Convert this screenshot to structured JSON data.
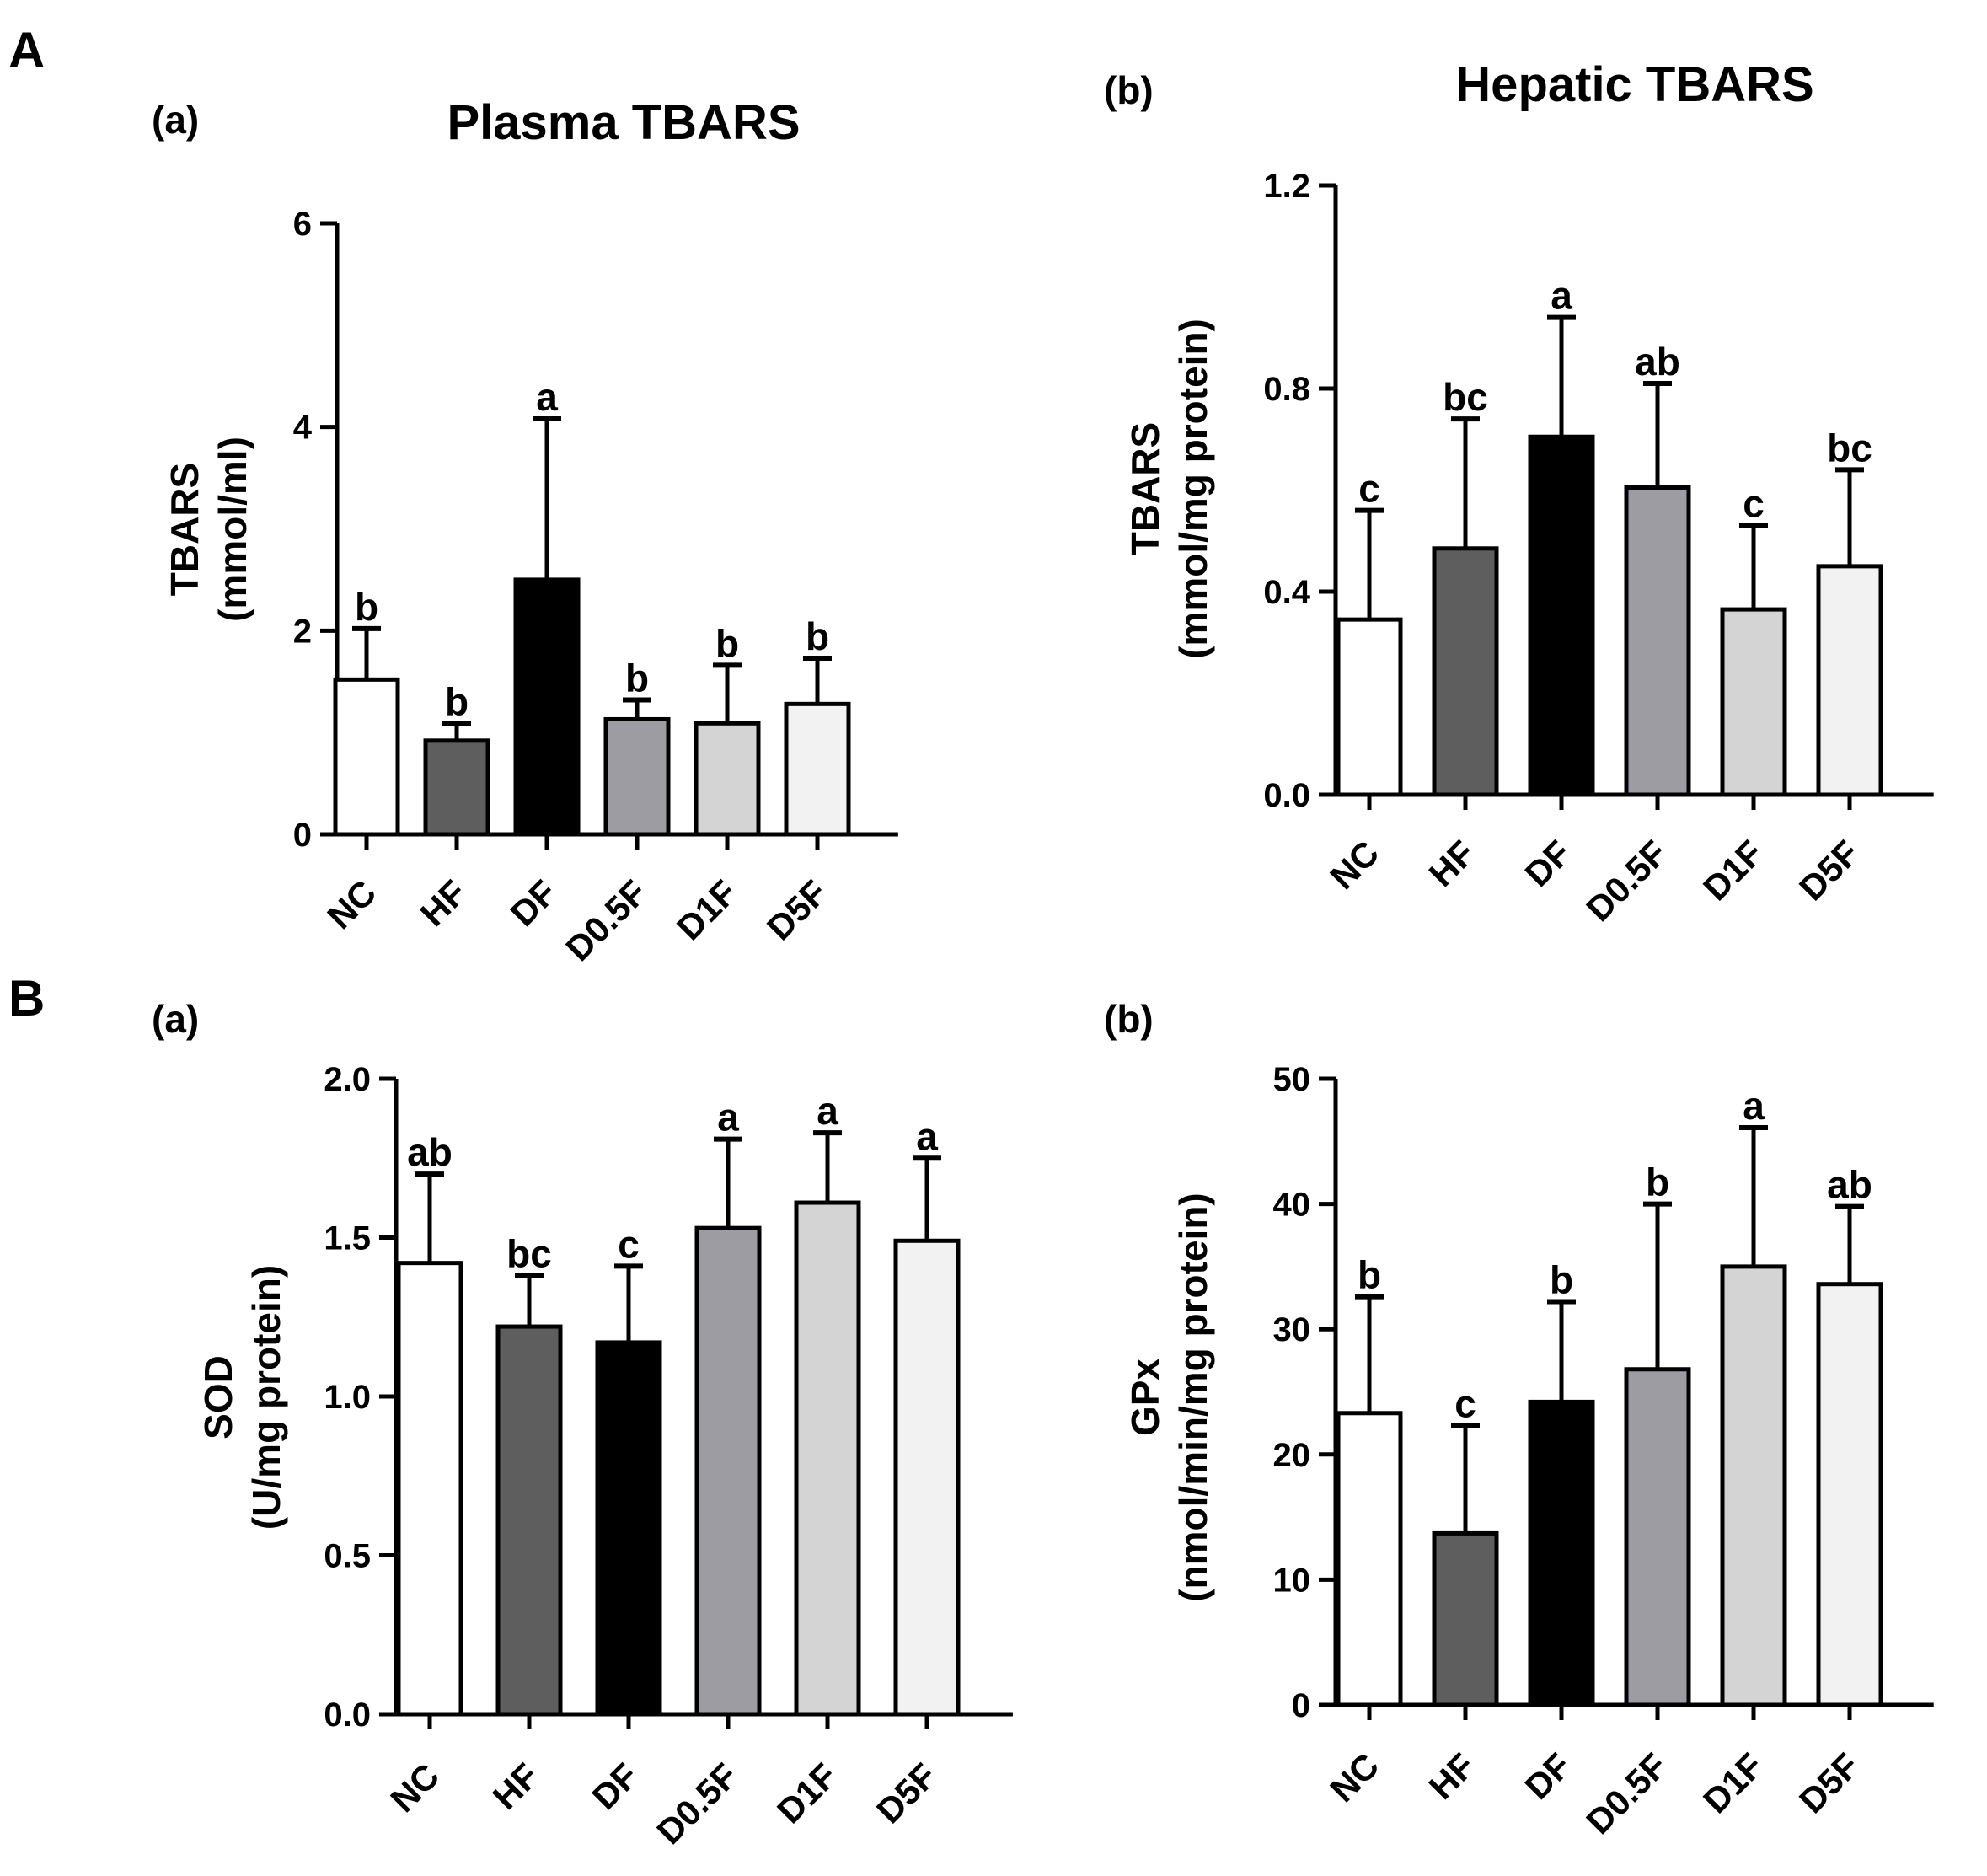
{
  "sections": [
    {
      "label": "A"
    },
    {
      "label": "B"
    }
  ],
  "chart_data": [
    {
      "id": "plasma-tbars",
      "type": "bar",
      "panel_label": "(a)",
      "title": "Plasma TBARS",
      "ylabel_line1": "TBARS",
      "ylabel_line2": "(mmol/ml)",
      "categories": [
        "NC",
        "HF",
        "DF",
        "D0.5F",
        "D1F",
        "D5F"
      ],
      "values": [
        1.52,
        0.92,
        2.5,
        1.13,
        1.09,
        1.28
      ],
      "errors": [
        0.5,
        0.17,
        1.58,
        0.19,
        0.57,
        0.45
      ],
      "letters": [
        "b",
        "b",
        "a",
        "b",
        "b",
        "b"
      ],
      "ylim": [
        0,
        6
      ],
      "yticks": [
        0,
        2,
        4,
        6
      ],
      "ytick_labels": [
        "0",
        "2",
        "4",
        "6"
      ]
    },
    {
      "id": "hepatic-tbars",
      "type": "bar",
      "panel_label": "(b)",
      "title": "Hepatic TBARS",
      "ylabel_line1": "TBARS",
      "ylabel_line2": "(mmol/mg protein)",
      "categories": [
        "NC",
        "HF",
        "DF",
        "D0.5F",
        "D1F",
        "D5F"
      ],
      "values": [
        0.345,
        0.485,
        0.705,
        0.605,
        0.365,
        0.45
      ],
      "errors": [
        0.215,
        0.255,
        0.235,
        0.205,
        0.165,
        0.19
      ],
      "letters": [
        "c",
        "bc",
        "a",
        "ab",
        "c",
        "bc"
      ],
      "ylim": [
        0,
        1.2
      ],
      "yticks": [
        0,
        0.4,
        0.8,
        1.2
      ],
      "ytick_labels": [
        "0.0",
        "0.4",
        "0.8",
        "1.2"
      ]
    },
    {
      "id": "sod",
      "type": "bar",
      "panel_label": "(a)",
      "title": "",
      "ylabel_line1": "SOD",
      "ylabel_line2": "(U/mg protein)",
      "categories": [
        "NC",
        "HF",
        "DF",
        "D0.5F",
        "D1F",
        "D5F"
      ],
      "values": [
        1.42,
        1.22,
        1.17,
        1.53,
        1.61,
        1.49
      ],
      "errors": [
        0.28,
        0.16,
        0.24,
        0.28,
        0.22,
        0.26
      ],
      "letters": [
        "ab",
        "bc",
        "c",
        "a",
        "a",
        "a"
      ],
      "ylim": [
        0,
        2.0
      ],
      "yticks": [
        0,
        0.5,
        1.0,
        1.5,
        2.0
      ],
      "ytick_labels": [
        "0.0",
        "0.5",
        "1.0",
        "1.5",
        "2.0"
      ]
    },
    {
      "id": "gpx",
      "type": "bar",
      "panel_label": "(b)",
      "title": "",
      "ylabel_line1": "GPx",
      "ylabel_line2": "(nmol/min/mg protein)",
      "categories": [
        "NC",
        "HF",
        "DF",
        "D0.5F",
        "D1F",
        "D5F"
      ],
      "values": [
        23.3,
        13.7,
        24.2,
        26.8,
        35.0,
        33.6
      ],
      "errors": [
        9.3,
        8.6,
        8.0,
        13.2,
        11.1,
        6.2
      ],
      "letters": [
        "b",
        "c",
        "b",
        "b",
        "a",
        "ab"
      ],
      "ylim": [
        0,
        50
      ],
      "yticks": [
        0,
        10,
        20,
        30,
        40,
        50
      ],
      "ytick_labels": [
        "0",
        "10",
        "20",
        "30",
        "40",
        "50"
      ]
    }
  ],
  "bar_colors": [
    "#ffffff",
    "#5e5e5e",
    "#000000",
    "#9c9ca2",
    "#d4d4d4",
    "#f2f2f2"
  ],
  "stroke_color": "#000000"
}
